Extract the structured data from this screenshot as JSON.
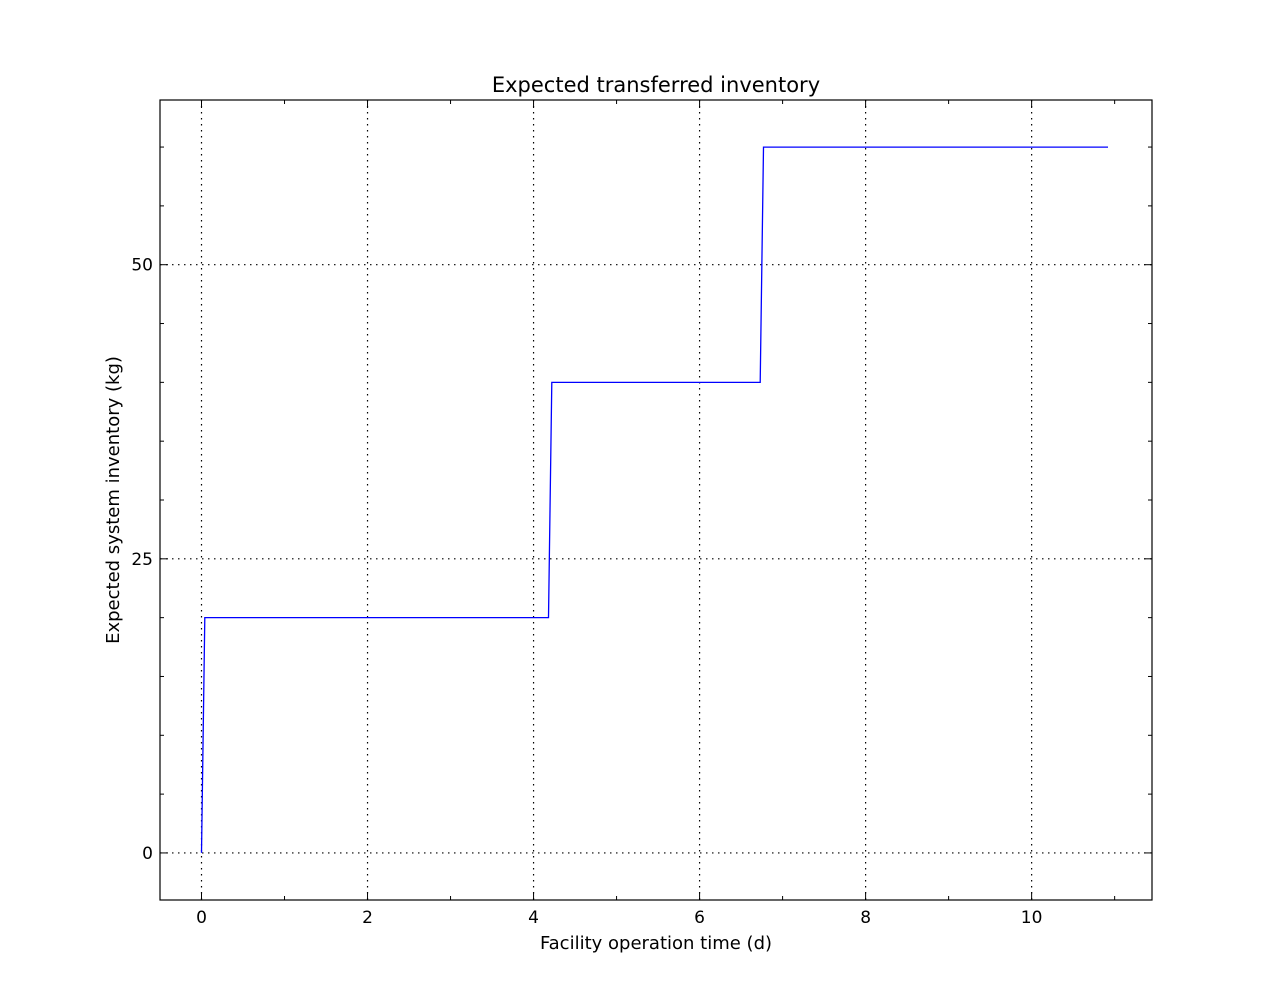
{
  "chart_data": {
    "type": "line",
    "title": "Expected transferred inventory",
    "xlabel": "Facility operation time (d)",
    "ylabel": "Expected system inventory (kg)",
    "xlim": [
      -0.5,
      11.45
    ],
    "ylim": [
      -4,
      64
    ],
    "xticks": [
      0,
      2,
      4,
      6,
      8,
      10
    ],
    "yticks": [
      0,
      25,
      50
    ],
    "x_minor_step": 1,
    "y_minor_step": 5,
    "grid": true,
    "series": [
      {
        "color": "#0000ff",
        "x": [
          0,
          0.04,
          4.18,
          4.22,
          6.73,
          6.77,
          10.92
        ],
        "y": [
          0,
          20,
          20,
          40,
          40,
          60,
          60
        ]
      }
    ]
  }
}
